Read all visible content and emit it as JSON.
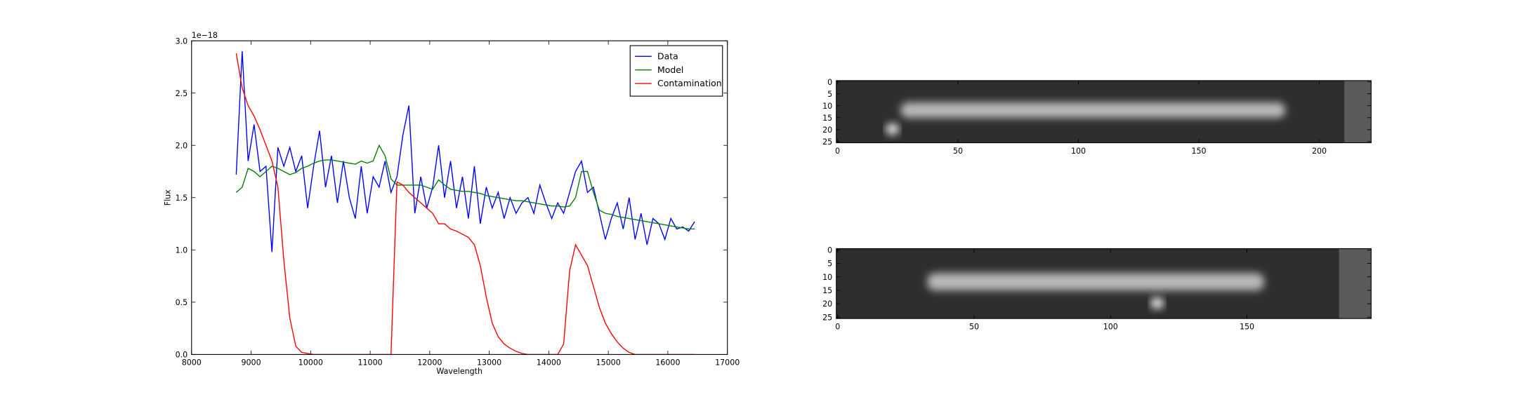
{
  "chart_data": [
    {
      "type": "line",
      "xlabel": "Wavelength",
      "ylabel": "Flux",
      "y_offset_label": "1e−18",
      "x": [
        8750,
        8850,
        8950,
        9050,
        9150,
        9250,
        9350,
        9450,
        9550,
        9650,
        9750,
        9850,
        9950,
        10050,
        10150,
        10250,
        10350,
        10450,
        10550,
        10650,
        10750,
        10850,
        10950,
        11050,
        11150,
        11250,
        11350,
        11450,
        11550,
        11650,
        11750,
        11850,
        11950,
        12050,
        12150,
        12250,
        12350,
        12450,
        12550,
        12650,
        12750,
        12850,
        12950,
        13050,
        13150,
        13250,
        13350,
        13450,
        13550,
        13650,
        13750,
        13850,
        13950,
        14050,
        14150,
        14250,
        14350,
        14450,
        14550,
        14650,
        14750,
        14850,
        14950,
        15050,
        15150,
        15250,
        15350,
        15450,
        15550,
        15650,
        15750,
        15850,
        15950,
        16050,
        16150,
        16250,
        16350,
        16450
      ],
      "series": [
        {
          "name": "Data",
          "color": "#0000ff",
          "values": [
            1.72,
            2.9,
            1.85,
            2.2,
            1.75,
            1.8,
            0.98,
            1.98,
            1.8,
            1.98,
            1.75,
            1.9,
            1.4,
            1.8,
            2.14,
            1.6,
            1.9,
            1.45,
            1.85,
            1.5,
            1.3,
            1.8,
            1.35,
            1.7,
            1.6,
            1.85,
            1.55,
            1.7,
            2.1,
            2.38,
            1.35,
            1.7,
            1.4,
            1.6,
            2.0,
            1.5,
            1.85,
            1.4,
            1.7,
            1.3,
            1.8,
            1.25,
            1.6,
            1.4,
            1.55,
            1.3,
            1.5,
            1.35,
            1.45,
            1.5,
            1.35,
            1.62,
            1.45,
            1.3,
            1.45,
            1.35,
            1.55,
            1.75,
            1.85,
            1.55,
            1.6,
            1.35,
            1.1,
            1.3,
            1.45,
            1.2,
            1.5,
            1.1,
            1.35,
            1.05,
            1.3,
            1.25,
            1.1,
            1.3,
            1.2,
            1.22,
            1.18,
            1.27
          ]
        },
        {
          "name": "Model",
          "color": "#008000",
          "values": [
            1.55,
            1.6,
            1.78,
            1.75,
            1.7,
            1.75,
            1.8,
            1.78,
            1.75,
            1.72,
            1.74,
            1.78,
            1.8,
            1.83,
            1.85,
            1.86,
            1.86,
            1.85,
            1.84,
            1.83,
            1.82,
            1.85,
            1.83,
            1.85,
            2.0,
            1.9,
            1.68,
            1.62,
            1.62,
            1.62,
            1.62,
            1.62,
            1.6,
            1.58,
            1.67,
            1.62,
            1.58,
            1.57,
            1.56,
            1.56,
            1.55,
            1.54,
            1.52,
            1.51,
            1.5,
            1.49,
            1.48,
            1.47,
            1.47,
            1.46,
            1.45,
            1.44,
            1.43,
            1.42,
            1.42,
            1.41,
            1.42,
            1.5,
            1.75,
            1.75,
            1.55,
            1.38,
            1.35,
            1.34,
            1.32,
            1.31,
            1.3,
            1.29,
            1.28,
            1.27,
            1.26,
            1.25,
            1.24,
            1.23,
            1.22,
            1.21,
            1.2,
            1.2
          ]
        },
        {
          "name": "Contamination",
          "color": "#ff0000",
          "values": [
            2.88,
            2.55,
            2.38,
            2.28,
            2.15,
            2.0,
            1.85,
            1.6,
            0.9,
            0.35,
            0.08,
            0.02,
            0.01,
            0,
            0,
            0,
            0,
            0,
            0,
            0,
            0,
            0,
            0,
            0,
            0,
            0,
            0,
            1.65,
            1.62,
            1.55,
            1.5,
            1.45,
            1.4,
            1.35,
            1.25,
            1.25,
            1.2,
            1.18,
            1.15,
            1.12,
            1.05,
            0.85,
            0.55,
            0.3,
            0.17,
            0.1,
            0.06,
            0.03,
            0.01,
            0,
            0,
            0,
            0,
            0,
            0,
            0.1,
            0.8,
            1.05,
            0.95,
            0.85,
            0.65,
            0.45,
            0.3,
            0.2,
            0.12,
            0.06,
            0.02,
            0,
            0,
            0,
            0,
            0,
            0,
            0,
            0,
            0,
            0,
            0
          ]
        }
      ],
      "xlim": [
        8000,
        17000
      ],
      "xticks": [
        8000,
        9000,
        10000,
        11000,
        12000,
        13000,
        14000,
        15000,
        16000,
        17000
      ],
      "ylim": [
        0,
        3
      ],
      "yticks": [
        {
          "value": 0,
          "label": "0.0"
        },
        0.5,
        {
          "value": 1,
          "label": "1.0"
        },
        1.5,
        {
          "value": 2,
          "label": "2.0"
        },
        2.5,
        {
          "value": 3,
          "label": "3.0"
        }
      ],
      "legend": "upper right"
    },
    {
      "type": "image",
      "xlim": [
        -0.5,
        221.5
      ],
      "xticks": [
        0,
        50,
        100,
        150,
        200
      ],
      "ylim": [
        25.5,
        -0.5
      ],
      "yticks": [
        0,
        5,
        10,
        15,
        20,
        25
      ]
    },
    {
      "type": "image",
      "xlim": [
        -0.5,
        195.5
      ],
      "xticks": [
        0,
        50,
        100,
        150
      ],
      "ylim": [
        25.5,
        -0.5
      ],
      "yticks": [
        0,
        5,
        10,
        15,
        20,
        25
      ]
    }
  ]
}
